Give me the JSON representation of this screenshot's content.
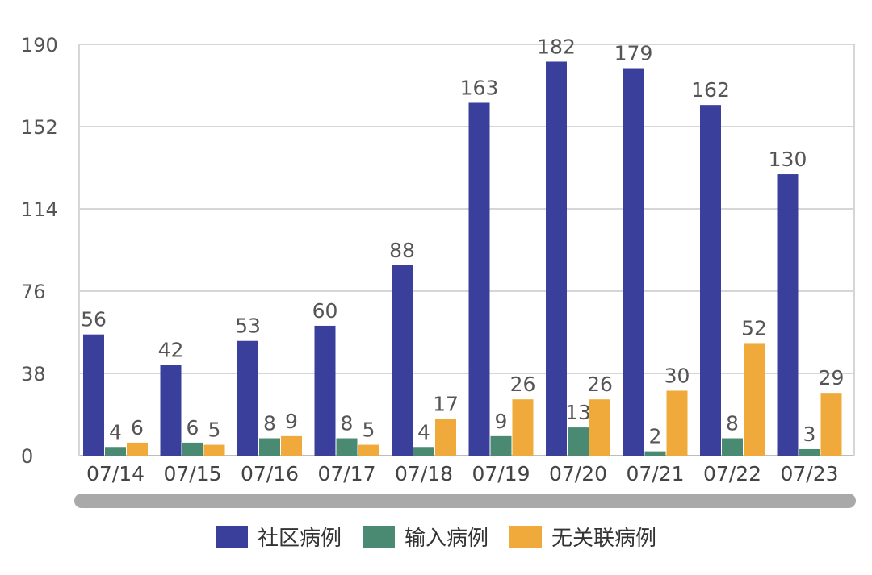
{
  "chart_data": {
    "type": "bar",
    "categories": [
      "07/14",
      "07/15",
      "07/16",
      "07/17",
      "07/18",
      "07/19",
      "07/20",
      "07/21",
      "07/22",
      "07/23"
    ],
    "series": [
      {
        "name": "社区病例",
        "color": "#3a3f9c",
        "values": [
          56,
          42,
          53,
          60,
          88,
          163,
          182,
          179,
          162,
          130
        ]
      },
      {
        "name": "输入病例",
        "color": "#4a8a72",
        "values": [
          4,
          6,
          8,
          8,
          4,
          9,
          13,
          2,
          8,
          3
        ]
      },
      {
        "name": "无关联病例",
        "color": "#f0a93b",
        "values": [
          6,
          5,
          9,
          5,
          17,
          26,
          26,
          30,
          52,
          29
        ]
      }
    ],
    "y_ticks": [
      0,
      38,
      76,
      114,
      152,
      190
    ],
    "ylim": [
      0,
      190
    ],
    "grid": true,
    "legend_position": "bottom",
    "data_labels": true
  }
}
